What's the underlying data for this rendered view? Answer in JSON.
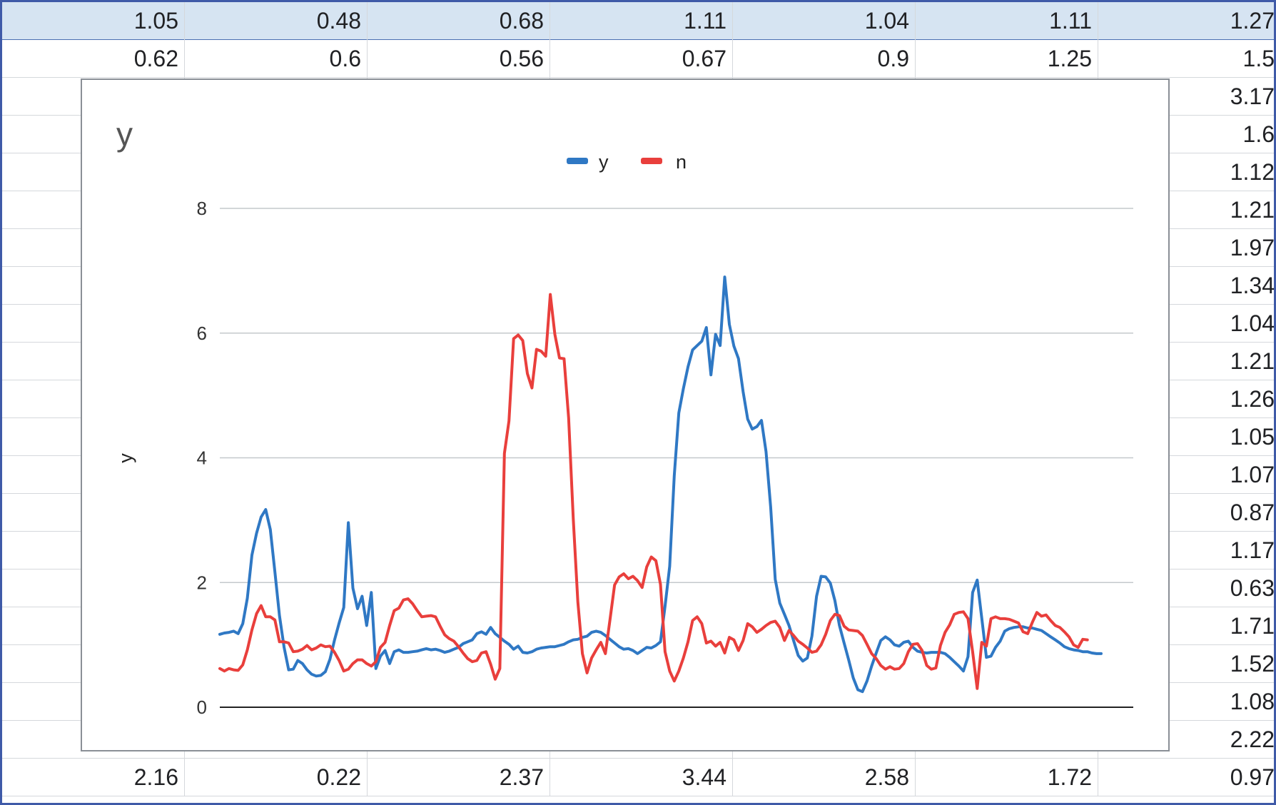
{
  "sheet": {
    "rows": [
      [
        "1.05",
        "0.48",
        "0.68",
        "1.11",
        "1.04",
        "1.11",
        "1.27"
      ],
      [
        "0.62",
        "0.6",
        "0.56",
        "0.67",
        "0.9",
        "1.25",
        "1.5"
      ],
      [
        "",
        "",
        "",
        "",
        "",
        "",
        "3.17"
      ],
      [
        "",
        "",
        "",
        "",
        "",
        "",
        "1.6"
      ],
      [
        "",
        "",
        "",
        "",
        "",
        "",
        "1.12"
      ],
      [
        "",
        "",
        "",
        "",
        "",
        "",
        "1.21"
      ],
      [
        "",
        "",
        "",
        "",
        "",
        "",
        "1.97"
      ],
      [
        "",
        "",
        "",
        "",
        "",
        "",
        "1.34"
      ],
      [
        "",
        "",
        "",
        "",
        "",
        "",
        "1.04"
      ],
      [
        "",
        "",
        "",
        "",
        "",
        "",
        "1.21"
      ],
      [
        "",
        "",
        "",
        "",
        "",
        "",
        "1.26"
      ],
      [
        "",
        "",
        "",
        "",
        "",
        "",
        "1.05"
      ],
      [
        "",
        "",
        "",
        "",
        "",
        "",
        "1.07"
      ],
      [
        "",
        "",
        "",
        "",
        "",
        "",
        "0.87"
      ],
      [
        "",
        "",
        "",
        "",
        "",
        "",
        "1.17"
      ],
      [
        "",
        "",
        "",
        "",
        "",
        "",
        "0.63"
      ],
      [
        "",
        "",
        "",
        "",
        "",
        "",
        "1.71"
      ],
      [
        "",
        "",
        "",
        "",
        "",
        "",
        "1.52"
      ],
      [
        "",
        "",
        "",
        "",
        "",
        "",
        "1.08"
      ],
      [
        "",
        "",
        "",
        "",
        "",
        "",
        "2.22"
      ],
      [
        "2.16",
        "0.22",
        "2.37",
        "3.44",
        "2.58",
        "1.72",
        "0.97"
      ]
    ],
    "selected_row": 0
  },
  "chart_data": {
    "type": "line",
    "title": "y",
    "xlabel": "",
    "ylabel": "y",
    "ylim": [
      0,
      8
    ],
    "yticks": [
      "0",
      "2",
      "4",
      "6",
      "8"
    ],
    "grid": true,
    "legend": "top-center",
    "x_count": 200,
    "series": [
      {
        "name": "y",
        "color": "#2f78c4",
        "values": [
          1.17,
          1.19,
          1.2,
          1.22,
          1.18,
          1.34,
          1.75,
          2.44,
          2.79,
          3.05,
          3.17,
          2.85,
          2.17,
          1.47,
          0.96,
          0.6,
          0.61,
          0.75,
          0.7,
          0.6,
          0.53,
          0.5,
          0.51,
          0.57,
          0.77,
          1.08,
          1.35,
          1.6,
          2.96,
          1.91,
          1.58,
          1.78,
          1.31,
          1.84,
          0.62,
          0.82,
          0.91,
          0.7,
          0.89,
          0.92,
          0.88,
          0.88,
          0.89,
          0.9,
          0.92,
          0.94,
          0.92,
          0.93,
          0.91,
          0.88,
          0.9,
          0.93,
          0.96,
          1.02,
          1.05,
          1.08,
          1.18,
          1.21,
          1.17,
          1.28,
          1.18,
          1.12,
          1.06,
          1.01,
          0.93,
          0.98,
          0.88,
          0.87,
          0.89,
          0.93,
          0.95,
          0.96,
          0.97,
          0.97,
          0.99,
          1.01,
          1.05,
          1.08,
          1.09,
          1.12,
          1.14,
          1.2,
          1.22,
          1.2,
          1.15,
          1.09,
          1.03,
          0.97,
          0.93,
          0.94,
          0.91,
          0.86,
          0.91,
          0.96,
          0.95,
          0.99,
          1.05,
          1.62,
          2.26,
          3.71,
          4.72,
          5.11,
          5.46,
          5.73,
          5.8,
          5.87,
          6.09,
          5.33,
          5.98,
          5.8,
          6.9,
          6.14,
          5.79,
          5.59,
          5.06,
          4.62,
          4.46,
          4.5,
          4.6,
          4.1,
          3.21,
          2.05,
          1.67,
          1.49,
          1.31,
          1.07,
          0.83,
          0.74,
          0.79,
          1.14,
          1.78,
          2.1,
          2.09,
          1.99,
          1.71,
          1.31,
          1.03,
          0.76,
          0.47,
          0.28,
          0.25,
          0.42,
          0.66,
          0.87,
          1.07,
          1.13,
          1.08,
          1.0,
          0.98,
          1.04,
          1.06,
          0.96,
          0.9,
          0.88,
          0.87,
          0.88,
          0.88,
          0.88,
          0.86,
          0.8,
          0.73,
          0.66,
          0.58,
          0.81,
          1.84,
          2.04,
          1.43,
          0.8,
          0.82,
          0.96,
          1.06,
          1.22,
          1.26,
          1.28,
          1.29,
          1.29,
          1.27,
          1.27,
          1.25,
          1.23,
          1.18,
          1.13,
          1.08,
          1.03,
          0.97,
          0.94,
          0.92,
          0.91,
          0.89,
          0.89,
          0.87,
          0.86,
          0.86
        ]
      },
      {
        "name": "n",
        "color": "#e93f3c",
        "values": [
          0.62,
          0.58,
          0.62,
          0.6,
          0.59,
          0.68,
          0.92,
          1.24,
          1.5,
          1.63,
          1.45,
          1.45,
          1.4,
          1.05,
          1.05,
          1.03,
          0.89,
          0.9,
          0.93,
          0.99,
          0.92,
          0.95,
          1.0,
          0.97,
          0.98,
          0.88,
          0.75,
          0.58,
          0.61,
          0.7,
          0.76,
          0.76,
          0.7,
          0.66,
          0.73,
          0.96,
          1.04,
          1.31,
          1.55,
          1.59,
          1.72,
          1.74,
          1.66,
          1.55,
          1.45,
          1.46,
          1.47,
          1.45,
          1.3,
          1.16,
          1.1,
          1.06,
          0.97,
          0.87,
          0.78,
          0.73,
          0.75,
          0.87,
          0.89,
          0.69,
          0.45,
          0.62,
          4.07,
          4.59,
          5.91,
          5.97,
          5.88,
          5.35,
          5.12,
          5.74,
          5.71,
          5.63,
          6.62,
          5.98,
          5.6,
          5.59,
          4.64,
          3.02,
          1.69,
          0.86,
          0.55,
          0.79,
          0.92,
          1.04,
          0.86,
          1.4,
          1.96,
          2.09,
          2.14,
          2.06,
          2.1,
          2.03,
          1.92,
          2.25,
          2.41,
          2.35,
          1.97,
          0.89,
          0.58,
          0.42,
          0.58,
          0.79,
          1.05,
          1.39,
          1.45,
          1.34,
          1.03,
          1.06,
          0.98,
          1.04,
          0.87,
          1.12,
          1.08,
          0.91,
          1.07,
          1.34,
          1.29,
          1.2,
          1.25,
          1.31,
          1.36,
          1.38,
          1.28,
          1.07,
          1.23,
          1.15,
          1.06,
          1.01,
          0.95,
          0.88,
          0.9,
          1.0,
          1.17,
          1.39,
          1.49,
          1.47,
          1.3,
          1.24,
          1.23,
          1.22,
          1.15,
          1.01,
          0.86,
          0.78,
          0.67,
          0.61,
          0.65,
          0.61,
          0.62,
          0.7,
          0.89,
          1.01,
          1.02,
          0.91,
          0.67,
          0.61,
          0.63,
          0.99,
          1.2,
          1.32,
          1.49,
          1.52,
          1.53,
          1.42,
          0.89,
          0.3,
          1.04,
          0.98,
          1.42,
          1.45,
          1.42,
          1.42,
          1.41,
          1.38,
          1.35,
          1.21,
          1.18,
          1.36,
          1.52,
          1.46,
          1.48,
          1.39,
          1.31,
          1.28,
          1.21,
          1.13,
          1.0,
          0.96,
          1.09,
          1.08
        ]
      }
    ]
  }
}
